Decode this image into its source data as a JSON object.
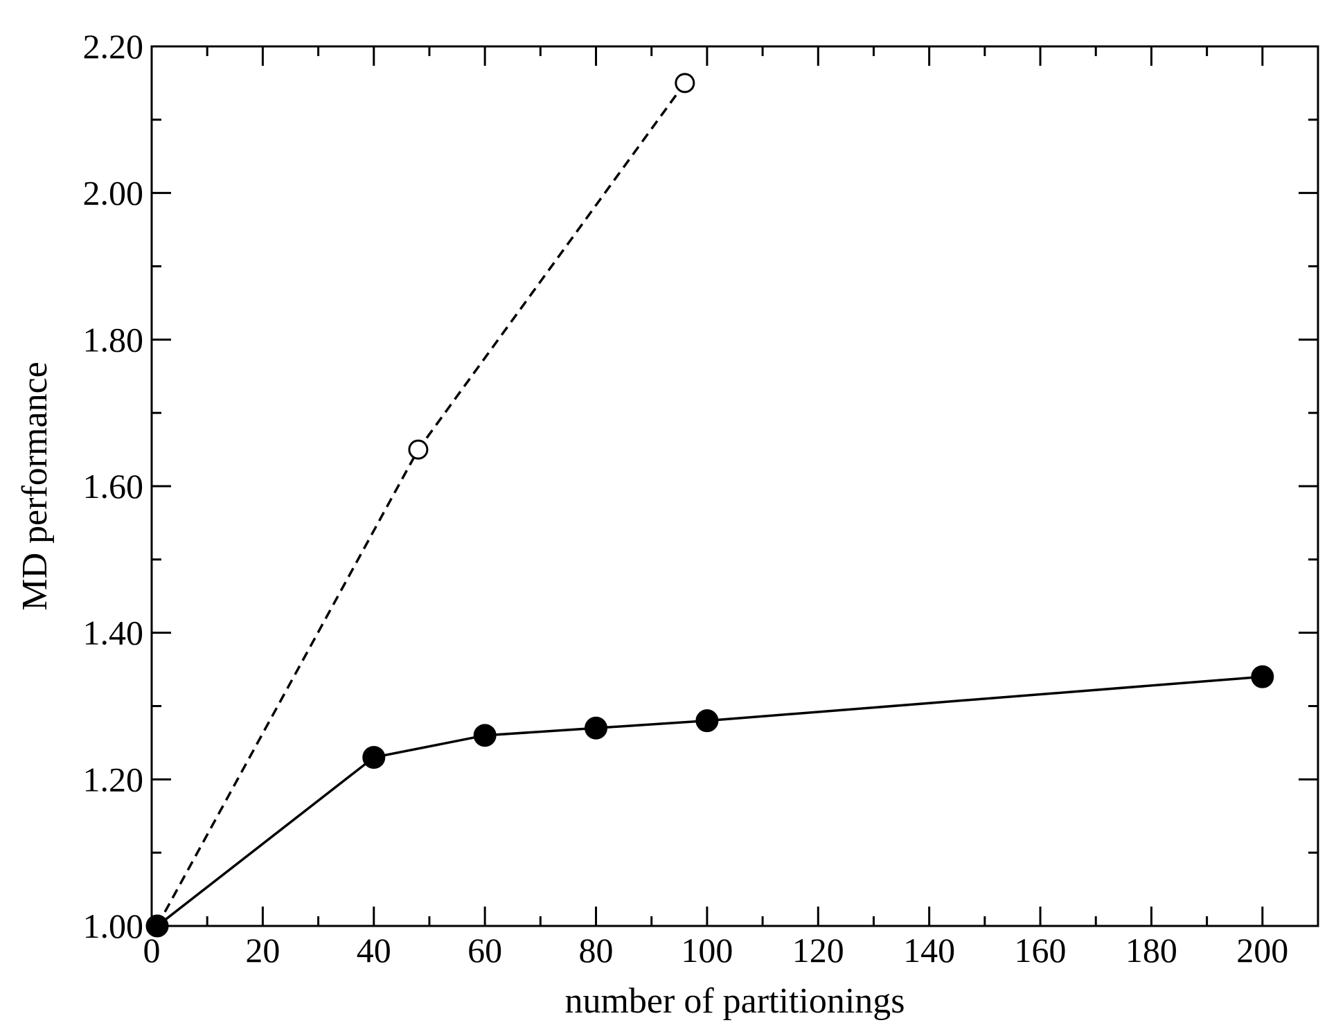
{
  "chart_data": {
    "type": "line",
    "title": "",
    "xlabel": "number of partitionings",
    "ylabel": "MD performance",
    "xlim": [
      0,
      210
    ],
    "ylim": [
      1.0,
      2.2
    ],
    "x_ticks": [
      0,
      20,
      40,
      60,
      80,
      100,
      120,
      140,
      160,
      180,
      200
    ],
    "x_tick_labels": [
      "0",
      "20",
      "40",
      "60",
      "80",
      "100",
      "120",
      "140",
      "160",
      "180",
      "200"
    ],
    "x_minor_step": 10,
    "y_ticks": [
      1.0,
      1.2,
      1.4,
      1.6,
      1.8,
      2.0,
      2.2
    ],
    "y_tick_labels": [
      "1.00",
      "1.20",
      "1.40",
      "1.60",
      "1.80",
      "2.00",
      "2.20"
    ],
    "y_minor_step": 0.1,
    "grid": false,
    "legend": "none",
    "series": [
      {
        "line_style": "dashed",
        "marker": "open-circle",
        "color": "#000000",
        "x": [
          1,
          48,
          96
        ],
        "y": [
          1.0,
          1.65,
          2.15
        ]
      },
      {
        "line_style": "solid",
        "marker": "filled-circle",
        "color": "#000000",
        "x": [
          1,
          40,
          60,
          80,
          100,
          200
        ],
        "y": [
          1.0,
          1.23,
          1.26,
          1.27,
          1.28,
          1.34
        ]
      }
    ]
  }
}
